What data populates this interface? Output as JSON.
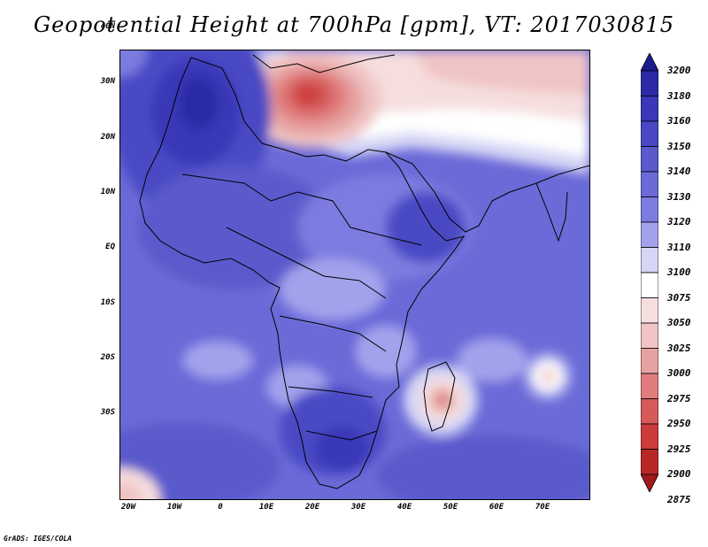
{
  "title": "Geopotential Height at 700hPa [gpm], VT: 2017030815",
  "footer": "GrADS: IGES/COLA",
  "lat_labels": [
    "40N",
    "30N",
    "20N",
    "10N",
    "EQ",
    "10S",
    "20S",
    "30S"
  ],
  "lon_labels": [
    "20W",
    "10W",
    "0",
    "10E",
    "20E",
    "30E",
    "40E",
    "50E",
    "60E",
    "70E"
  ],
  "colorbar": {
    "levels": [
      "3200",
      "3180",
      "3160",
      "3150",
      "3140",
      "3130",
      "3120",
      "3110",
      "3100",
      "3075",
      "3050",
      "3025",
      "3000",
      "2975",
      "2950",
      "2925",
      "2900",
      "2875"
    ],
    "colors": [
      "#1c1c8c",
      "#2a2aa6",
      "#3838b8",
      "#4848c4",
      "#5a5acc",
      "#6a6ad8",
      "#7c7ce0",
      "#a2a2ec",
      "#d6d6f6",
      "#ffffff",
      "#f6dede",
      "#f0c4c4",
      "#e6a2a2",
      "#e07c7c",
      "#d65a5a",
      "#cc3c3c",
      "#b82828",
      "#a01a1a"
    ]
  }
}
